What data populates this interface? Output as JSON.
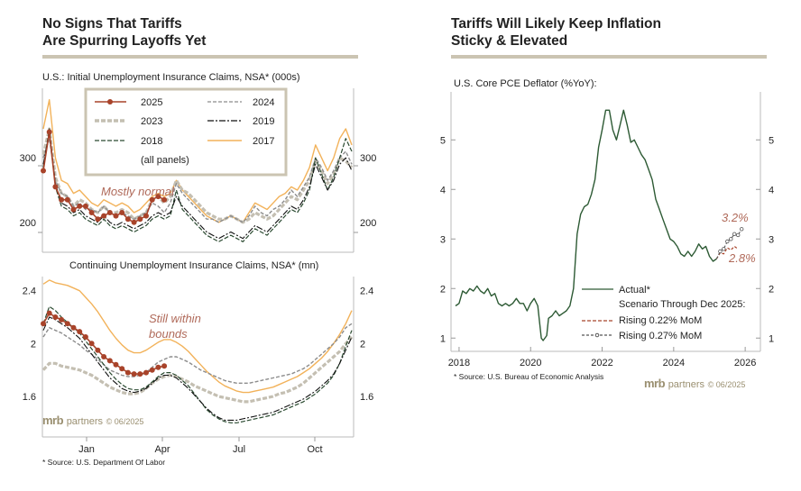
{
  "left": {
    "title": "No Signs That Tariffs\nAre Spurring Layoffs Yet",
    "panel1_label": "U.S.: Initial Unemployment Insurance Claims, NSA* (000s)",
    "panel2_label": "Continuing Unemployment Insurance Claims, NSA* (mn)",
    "annot1": "Mostly normal",
    "annot2_l1": "Still within",
    "annot2_l2": "bounds",
    "legend_note": "(all panels)",
    "source": "* Source: U.S. Department Of Labor",
    "brand_mrb": "mrb",
    "brand_partners": "partners",
    "brand_date": "© 06/2025"
  },
  "right": {
    "title": "Tariffs Will Likely Keep Inflation\nSticky & Elevated",
    "chart_label": "U.S. Core PCE Deflator (%YoY):",
    "legend": {
      "actual": "Actual*",
      "scenario": "Scenario Through Dec 2025:",
      "s1": "Rising 0.22% MoM",
      "s2": "Rising 0.27% MoM"
    },
    "annot_high": "3.2%",
    "annot_low": "2.8%",
    "source": "* Source: U.S. Bureau of Economic Analysis",
    "brand_mrb": "mrb",
    "brand_partners": "partners",
    "brand_date": "© 06/2025"
  },
  "colors": {
    "s2025": "#a8432a",
    "s2024": "#8c8c8c",
    "s2023": "#c4bfb2",
    "s2019": "#111111",
    "s2018": "#2a4a30",
    "s2017": "#f2b25a",
    "pce": "#2d5a34",
    "accent_text": "#b06a5a",
    "rule": "#cbc4b2"
  },
  "chart_data": [
    {
      "type": "line",
      "title": "U.S.: Initial Unemployment Insurance Claims, NSA* (000s)",
      "x_labels": [
        "Jan",
        "Apr",
        "Jul",
        "Oct"
      ],
      "ylim": [
        155,
        405
      ],
      "yticks": [
        200,
        300
      ],
      "series": [
        {
          "name": "2025",
          "values": [
            280,
            340,
            255,
            235,
            235,
            220,
            225,
            225,
            215,
            205,
            210,
            215,
            210,
            215,
            205,
            200,
            205,
            210,
            235,
            240,
            235
          ]
        },
        {
          "name": "2024",
          "values": [
            300,
            330,
            265,
            245,
            240,
            225,
            230,
            220,
            220,
            215,
            225,
            215,
            210,
            215,
            210,
            205,
            210,
            215,
            230,
            225,
            215,
            230,
            260,
            245,
            235,
            225,
            215,
            205,
            205,
            200,
            205,
            210,
            205,
            200,
            210,
            225,
            215,
            210,
            220,
            225,
            235,
            250,
            240,
            255,
            270,
            300,
            285,
            265,
            280,
            300,
            310,
            290
          ]
        },
        {
          "name": "2023",
          "values": [
            305,
            345,
            270,
            245,
            240,
            225,
            235,
            230,
            220,
            215,
            225,
            215,
            215,
            220,
            215,
            205,
            210,
            215,
            235,
            240,
            230,
            240,
            265,
            250,
            245,
            235,
            225,
            215,
            210,
            205,
            205,
            210,
            205,
            200,
            205,
            215,
            210,
            205,
            210,
            220,
            230,
            240,
            235,
            250,
            265,
            295,
            280,
            260,
            275,
            300,
            295,
            285
          ]
        },
        {
          "name": "2019",
          "values": [
            290,
            340,
            260,
            230,
            225,
            215,
            220,
            210,
            205,
            200,
            210,
            200,
            195,
            200,
            195,
            190,
            195,
            200,
            210,
            215,
            210,
            215,
            240,
            225,
            215,
            205,
            195,
            185,
            180,
            175,
            180,
            185,
            180,
            175,
            185,
            195,
            190,
            185,
            195,
            205,
            215,
            225,
            220,
            235,
            255,
            290,
            270,
            250,
            265,
            290,
            300,
            280
          ]
        },
        {
          "name": "2018",
          "values": [
            285,
            345,
            255,
            225,
            220,
            210,
            215,
            205,
            200,
            195,
            205,
            195,
            190,
            195,
            190,
            185,
            190,
            195,
            205,
            210,
            205,
            210,
            250,
            220,
            210,
            200,
            190,
            180,
            175,
            170,
            175,
            180,
            175,
            170,
            180,
            190,
            185,
            180,
            190,
            200,
            210,
            220,
            215,
            230,
            250,
            300,
            275,
            250,
            270,
            300,
            330,
            310
          ]
        },
        {
          "name": "2017",
          "values": [
            345,
            390,
            300,
            265,
            260,
            245,
            250,
            240,
            230,
            225,
            235,
            230,
            225,
            230,
            225,
            215,
            220,
            230,
            240,
            245,
            240,
            245,
            265,
            250,
            240,
            230,
            220,
            210,
            205,
            200,
            205,
            210,
            205,
            200,
            215,
            230,
            225,
            220,
            230,
            240,
            245,
            255,
            250,
            265,
            285,
            320,
            300,
            280,
            300,
            330,
            345,
            320
          ]
        }
      ]
    },
    {
      "type": "line",
      "title": "Continuing Unemployment Insurance Claims, NSA* (mn)",
      "x_labels": [
        "Jan",
        "Apr",
        "Jul",
        "Oct"
      ],
      "ylim": [
        1.3,
        2.5
      ],
      "yticks": [
        1.6,
        2.0,
        2.4
      ],
      "series": [
        {
          "name": "2025",
          "values": [
            2.15,
            2.23,
            2.2,
            2.18,
            2.15,
            2.12,
            2.09,
            2.05,
            2.0,
            1.95,
            1.9,
            1.87,
            1.84,
            1.81,
            1.78,
            1.77,
            1.77,
            1.78,
            1.8,
            1.82,
            1.83
          ]
        },
        {
          "name": "2024",
          "values": [
            2.05,
            2.12,
            2.1,
            2.08,
            2.05,
            2.02,
            1.99,
            1.95,
            1.92,
            1.88,
            1.84,
            1.8,
            1.78,
            1.76,
            1.75,
            1.75,
            1.76,
            1.78,
            1.82,
            1.86,
            1.88,
            1.9,
            1.9,
            1.88,
            1.86,
            1.83,
            1.8,
            1.78,
            1.76,
            1.74,
            1.72,
            1.71,
            1.7,
            1.7,
            1.7,
            1.71,
            1.72,
            1.73,
            1.74,
            1.75,
            1.76,
            1.77,
            1.79,
            1.81,
            1.84,
            1.88,
            1.92,
            1.96,
            2.0,
            2.05,
            2.12,
            2.15
          ]
        },
        {
          "name": "2023",
          "values": [
            1.8,
            1.85,
            1.85,
            1.83,
            1.82,
            1.81,
            1.8,
            1.78,
            1.76,
            1.73,
            1.7,
            1.67,
            1.65,
            1.63,
            1.62,
            1.62,
            1.63,
            1.66,
            1.7,
            1.73,
            1.75,
            1.76,
            1.75,
            1.73,
            1.71,
            1.68,
            1.66,
            1.64,
            1.62,
            1.6,
            1.59,
            1.58,
            1.57,
            1.56,
            1.56,
            1.57,
            1.58,
            1.59,
            1.6,
            1.62,
            1.63,
            1.65,
            1.67,
            1.7,
            1.74,
            1.78,
            1.82,
            1.86,
            1.9,
            1.94,
            2.0,
            2.05
          ]
        },
        {
          "name": "2019",
          "values": [
            2.1,
            2.2,
            2.18,
            2.15,
            2.12,
            2.08,
            2.04,
            1.98,
            1.92,
            1.86,
            1.8,
            1.74,
            1.7,
            1.66,
            1.64,
            1.63,
            1.64,
            1.66,
            1.7,
            1.74,
            1.76,
            1.76,
            1.74,
            1.7,
            1.66,
            1.61,
            1.56,
            1.51,
            1.47,
            1.44,
            1.42,
            1.42,
            1.42,
            1.43,
            1.44,
            1.45,
            1.46,
            1.47,
            1.48,
            1.5,
            1.52,
            1.54,
            1.56,
            1.58,
            1.61,
            1.64,
            1.68,
            1.72,
            1.77,
            1.85,
            1.95,
            2.05
          ]
        },
        {
          "name": "2018",
          "values": [
            2.15,
            2.28,
            2.25,
            2.2,
            2.16,
            2.12,
            2.08,
            2.02,
            1.96,
            1.9,
            1.84,
            1.78,
            1.73,
            1.69,
            1.66,
            1.65,
            1.65,
            1.67,
            1.71,
            1.75,
            1.78,
            1.78,
            1.76,
            1.72,
            1.68,
            1.62,
            1.56,
            1.5,
            1.46,
            1.43,
            1.41,
            1.4,
            1.4,
            1.41,
            1.42,
            1.43,
            1.44,
            1.45,
            1.46,
            1.48,
            1.5,
            1.52,
            1.54,
            1.56,
            1.59,
            1.62,
            1.66,
            1.7,
            1.76,
            1.85,
            1.98,
            2.1
          ]
        },
        {
          "name": "2017",
          "values": [
            2.45,
            2.48,
            2.46,
            2.45,
            2.44,
            2.42,
            2.4,
            2.35,
            2.3,
            2.24,
            2.17,
            2.1,
            2.04,
            1.99,
            1.95,
            1.93,
            1.93,
            1.95,
            1.98,
            2.01,
            2.03,
            2.03,
            2.01,
            1.98,
            1.94,
            1.89,
            1.84,
            1.79,
            1.75,
            1.71,
            1.68,
            1.66,
            1.64,
            1.63,
            1.63,
            1.64,
            1.65,
            1.66,
            1.67,
            1.69,
            1.71,
            1.73,
            1.75,
            1.78,
            1.81,
            1.85,
            1.89,
            1.94,
            2.0,
            2.07,
            2.15,
            2.25
          ]
        }
      ]
    },
    {
      "type": "line",
      "title": "U.S. Core PCE Deflator (%YoY):",
      "x_ticks": [
        2018,
        2020,
        2022,
        2024,
        2026
      ],
      "xlim": [
        2017.8,
        2026.4
      ],
      "ylim": [
        0.75,
        5.95
      ],
      "yticks": [
        1,
        2,
        3,
        4,
        5
      ],
      "series": [
        {
          "name": "Actual*",
          "points": [
            [
              2017.9,
              1.65
            ],
            [
              2018.0,
              1.7
            ],
            [
              2018.1,
              1.95
            ],
            [
              2018.2,
              1.9
            ],
            [
              2018.3,
              2.0
            ],
            [
              2018.4,
              1.95
            ],
            [
              2018.5,
              2.05
            ],
            [
              2018.6,
              1.95
            ],
            [
              2018.7,
              1.9
            ],
            [
              2018.8,
              2.0
            ],
            [
              2018.9,
              1.85
            ],
            [
              2019.0,
              1.9
            ],
            [
              2019.1,
              1.7
            ],
            [
              2019.2,
              1.65
            ],
            [
              2019.3,
              1.7
            ],
            [
              2019.4,
              1.65
            ],
            [
              2019.5,
              1.7
            ],
            [
              2019.6,
              1.8
            ],
            [
              2019.7,
              1.7
            ],
            [
              2019.8,
              1.7
            ],
            [
              2019.9,
              1.55
            ],
            [
              2020.0,
              1.7
            ],
            [
              2020.1,
              1.8
            ],
            [
              2020.2,
              1.65
            ],
            [
              2020.3,
              1.0
            ],
            [
              2020.35,
              0.95
            ],
            [
              2020.45,
              1.05
            ],
            [
              2020.5,
              1.4
            ],
            [
              2020.6,
              1.45
            ],
            [
              2020.7,
              1.55
            ],
            [
              2020.8,
              1.45
            ],
            [
              2020.9,
              1.5
            ],
            [
              2021.0,
              1.55
            ],
            [
              2021.1,
              1.65
            ],
            [
              2021.2,
              2.0
            ],
            [
              2021.3,
              3.1
            ],
            [
              2021.4,
              3.5
            ],
            [
              2021.5,
              3.65
            ],
            [
              2021.6,
              3.7
            ],
            [
              2021.7,
              3.9
            ],
            [
              2021.8,
              4.2
            ],
            [
              2021.9,
              4.85
            ],
            [
              2022.0,
              5.2
            ],
            [
              2022.1,
              5.6
            ],
            [
              2022.2,
              5.6
            ],
            [
              2022.3,
              5.2
            ],
            [
              2022.4,
              5.0
            ],
            [
              2022.5,
              5.3
            ],
            [
              2022.6,
              5.6
            ],
            [
              2022.7,
              5.3
            ],
            [
              2022.8,
              4.95
            ],
            [
              2022.9,
              5.0
            ],
            [
              2023.0,
              4.85
            ],
            [
              2023.1,
              4.7
            ],
            [
              2023.2,
              4.6
            ],
            [
              2023.3,
              4.4
            ],
            [
              2023.4,
              4.2
            ],
            [
              2023.5,
              3.8
            ],
            [
              2023.6,
              3.6
            ],
            [
              2023.7,
              3.4
            ],
            [
              2023.8,
              3.2
            ],
            [
              2023.9,
              3.0
            ],
            [
              2024.0,
              2.95
            ],
            [
              2024.1,
              2.85
            ],
            [
              2024.2,
              2.7
            ],
            [
              2024.3,
              2.65
            ],
            [
              2024.4,
              2.75
            ],
            [
              2024.5,
              2.65
            ],
            [
              2024.6,
              2.75
            ],
            [
              2024.7,
              2.9
            ],
            [
              2024.8,
              2.8
            ],
            [
              2024.9,
              2.85
            ],
            [
              2025.0,
              2.65
            ],
            [
              2025.1,
              2.55
            ],
            [
              2025.2,
              2.6
            ]
          ]
        },
        {
          "name": "Rising 0.22% MoM",
          "points": [
            [
              2025.2,
              2.6
            ],
            [
              2025.3,
              2.72
            ],
            [
              2025.4,
              2.7
            ],
            [
              2025.5,
              2.82
            ],
            [
              2025.6,
              2.78
            ],
            [
              2025.7,
              2.85
            ],
            [
              2025.8,
              2.8
            ]
          ]
        },
        {
          "name": "Rising 0.27% MoM",
          "points": [
            [
              2025.2,
              2.6
            ],
            [
              2025.3,
              2.75
            ],
            [
              2025.4,
              2.8
            ],
            [
              2025.5,
              2.95
            ],
            [
              2025.6,
              3.0
            ],
            [
              2025.7,
              3.1
            ],
            [
              2025.8,
              3.08
            ],
            [
              2025.9,
              3.2
            ]
          ]
        }
      ]
    }
  ]
}
